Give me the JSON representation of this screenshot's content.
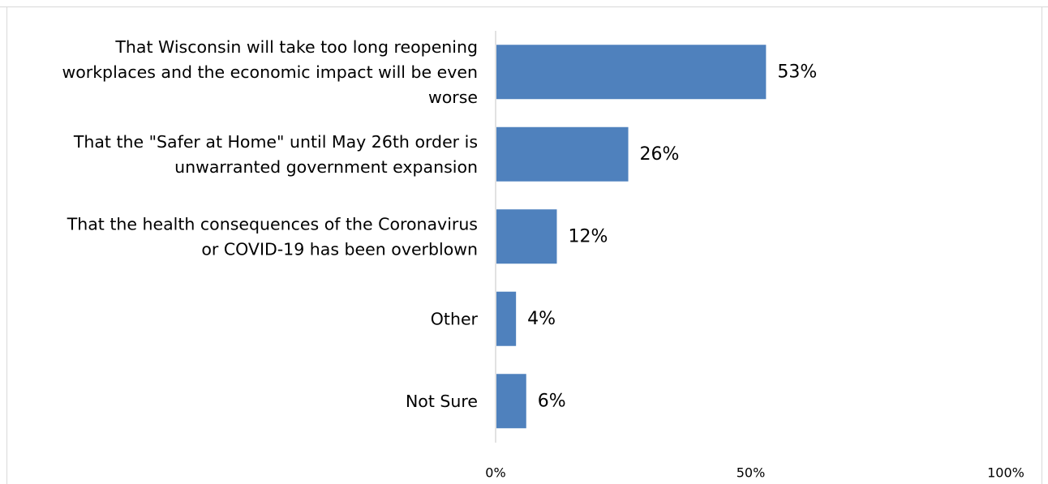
{
  "chart_data": {
    "type": "bar",
    "orientation": "horizontal",
    "categories": [
      [
        "That Wisconsin will take too long reopening",
        "workplaces and the economic impact will be even",
        "worse"
      ],
      [
        "That the \"Safer at Home\" until May 26th order is",
        "unwarranted government expansion"
      ],
      [
        "That the health consequences of the Coronavirus",
        "or COVID-19 has been overblown"
      ],
      [
        "Other"
      ],
      [
        "Not Sure"
      ]
    ],
    "values": [
      53,
      26,
      12,
      4,
      6
    ],
    "value_labels": [
      "53%",
      "26%",
      "12%",
      "4%",
      "6%"
    ],
    "xlim": [
      0,
      100
    ],
    "x_ticks": [
      0,
      50,
      100
    ],
    "x_tick_labels": [
      "0%",
      "50%",
      "100%"
    ],
    "bar_color": "#4f81bd",
    "grid": false,
    "legend": "none"
  }
}
